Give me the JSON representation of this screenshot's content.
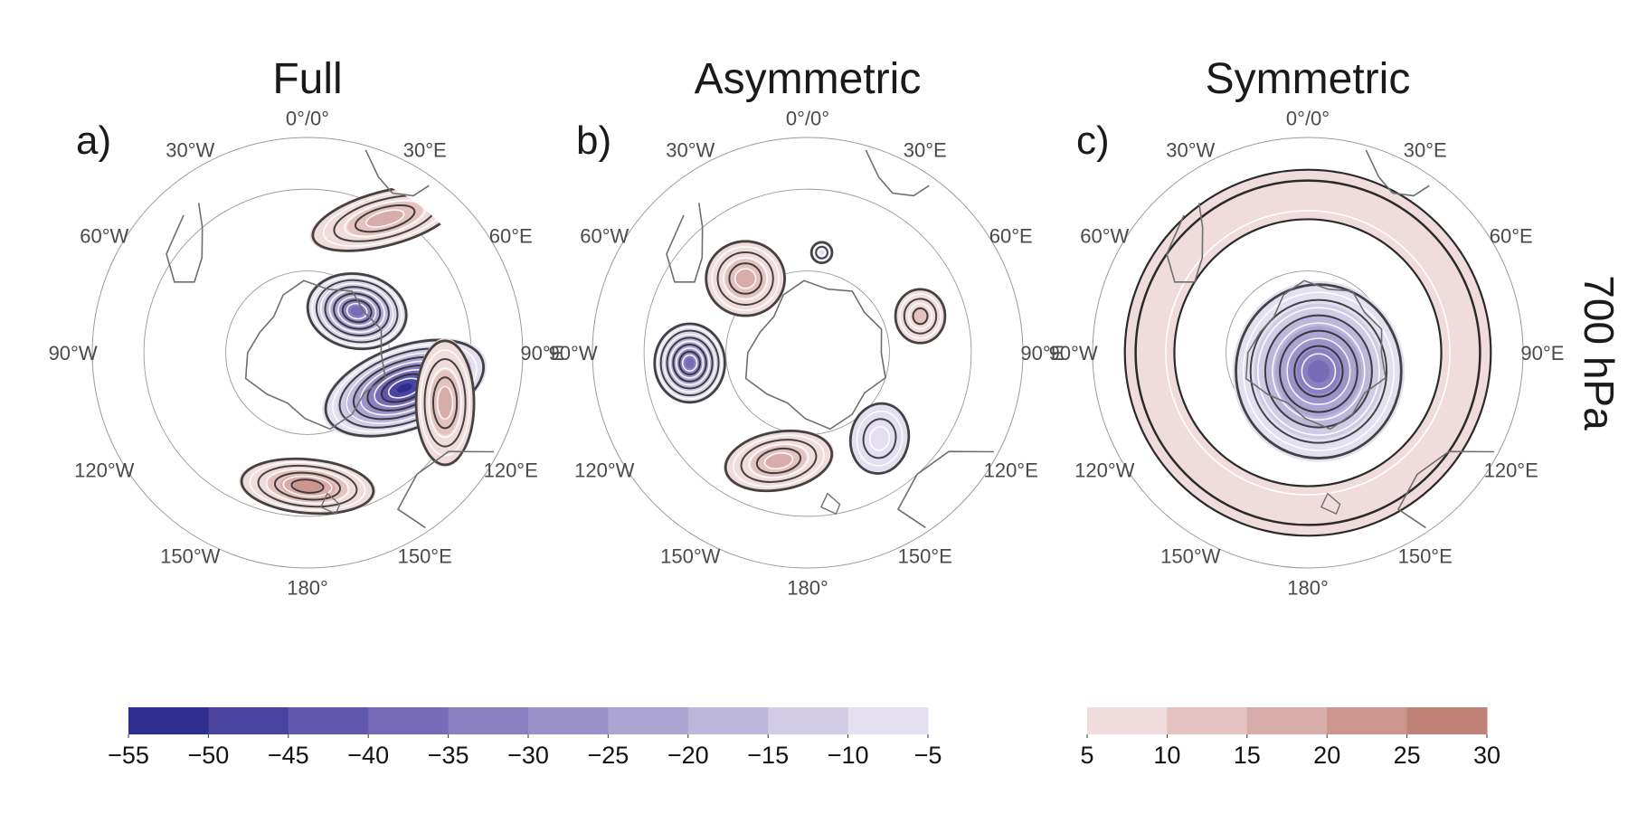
{
  "level_label": "700 hPa",
  "panels": [
    {
      "title": "Full",
      "letter": "a)",
      "blobs": [
        {
          "lon": 110,
          "dist": 0.48,
          "sx": 0.4,
          "sy": 0.2,
          "rot": -20,
          "value": -55
        },
        {
          "lon": 50,
          "dist": 0.3,
          "sx": 0.24,
          "sy": 0.18,
          "rot": 10,
          "value": -40
        },
        {
          "lon": 30,
          "dist": 0.72,
          "sx": 0.36,
          "sy": 0.13,
          "rot": -15,
          "value": 20
        },
        {
          "lon": 110,
          "dist": 0.68,
          "sx": 0.14,
          "sy": 0.3,
          "rot": 0,
          "value": 20
        },
        {
          "lon": 180,
          "dist": 0.62,
          "sx": 0.32,
          "sy": 0.13,
          "rot": 5,
          "value": 25
        }
      ]
    },
    {
      "title": "Asymmetric",
      "letter": "b)",
      "blobs": [
        {
          "lon": -40,
          "dist": 0.45,
          "sx": 0.19,
          "sy": 0.18,
          "rot": 0,
          "value": 20
        },
        {
          "lon": -95,
          "dist": 0.55,
          "sx": 0.17,
          "sy": 0.19,
          "rot": 0,
          "value": -40
        },
        {
          "lon": -165,
          "dist": 0.52,
          "sx": 0.26,
          "sy": 0.14,
          "rot": -10,
          "value": 20
        },
        {
          "lon": 140,
          "dist": 0.52,
          "sx": 0.14,
          "sy": 0.17,
          "rot": 10,
          "value": -10
        },
        {
          "lon": 72,
          "dist": 0.55,
          "sx": 0.12,
          "sy": 0.13,
          "rot": 0,
          "value": 15
        },
        {
          "lon": 8,
          "dist": 0.47,
          "sx": 0.05,
          "sy": 0.05,
          "rot": 0,
          "value": -10
        }
      ]
    },
    {
      "title": "Symmetric",
      "letter": "c)",
      "ring": {
        "inner": 0.62,
        "outer": 0.85,
        "value": 10
      },
      "blobs": [
        {
          "lon": 150,
          "dist": 0.1,
          "sx": 0.4,
          "sy": 0.42,
          "rot": 0,
          "value": -40
        }
      ]
    }
  ],
  "longitude_labels": [
    "0°/0°",
    "30°E",
    "60°E",
    "90°E",
    "120°E",
    "150°E",
    "180°",
    "150°W",
    "120°W",
    "90°W",
    "60°W",
    "30°W"
  ],
  "colorbar_negative": {
    "ticks": [
      "−55",
      "−50",
      "−45",
      "−40",
      "−35",
      "−30",
      "−25",
      "−20",
      "−15",
      "−10",
      "−5"
    ],
    "colors": [
      "#2e2e8f",
      "#4a44a0",
      "#6157ad",
      "#776bb8",
      "#8a80c1",
      "#9b92c9",
      "#aca4d2",
      "#beb7dc",
      "#d1cbe6",
      "#e4e0f0"
    ]
  },
  "colorbar_positive": {
    "ticks": [
      "5",
      "10",
      "15",
      "20",
      "25",
      "30"
    ],
    "colors": [
      "#f0dcdc",
      "#e4c2c0",
      "#d8aca8",
      "#cc968f",
      "#c08276"
    ]
  }
}
